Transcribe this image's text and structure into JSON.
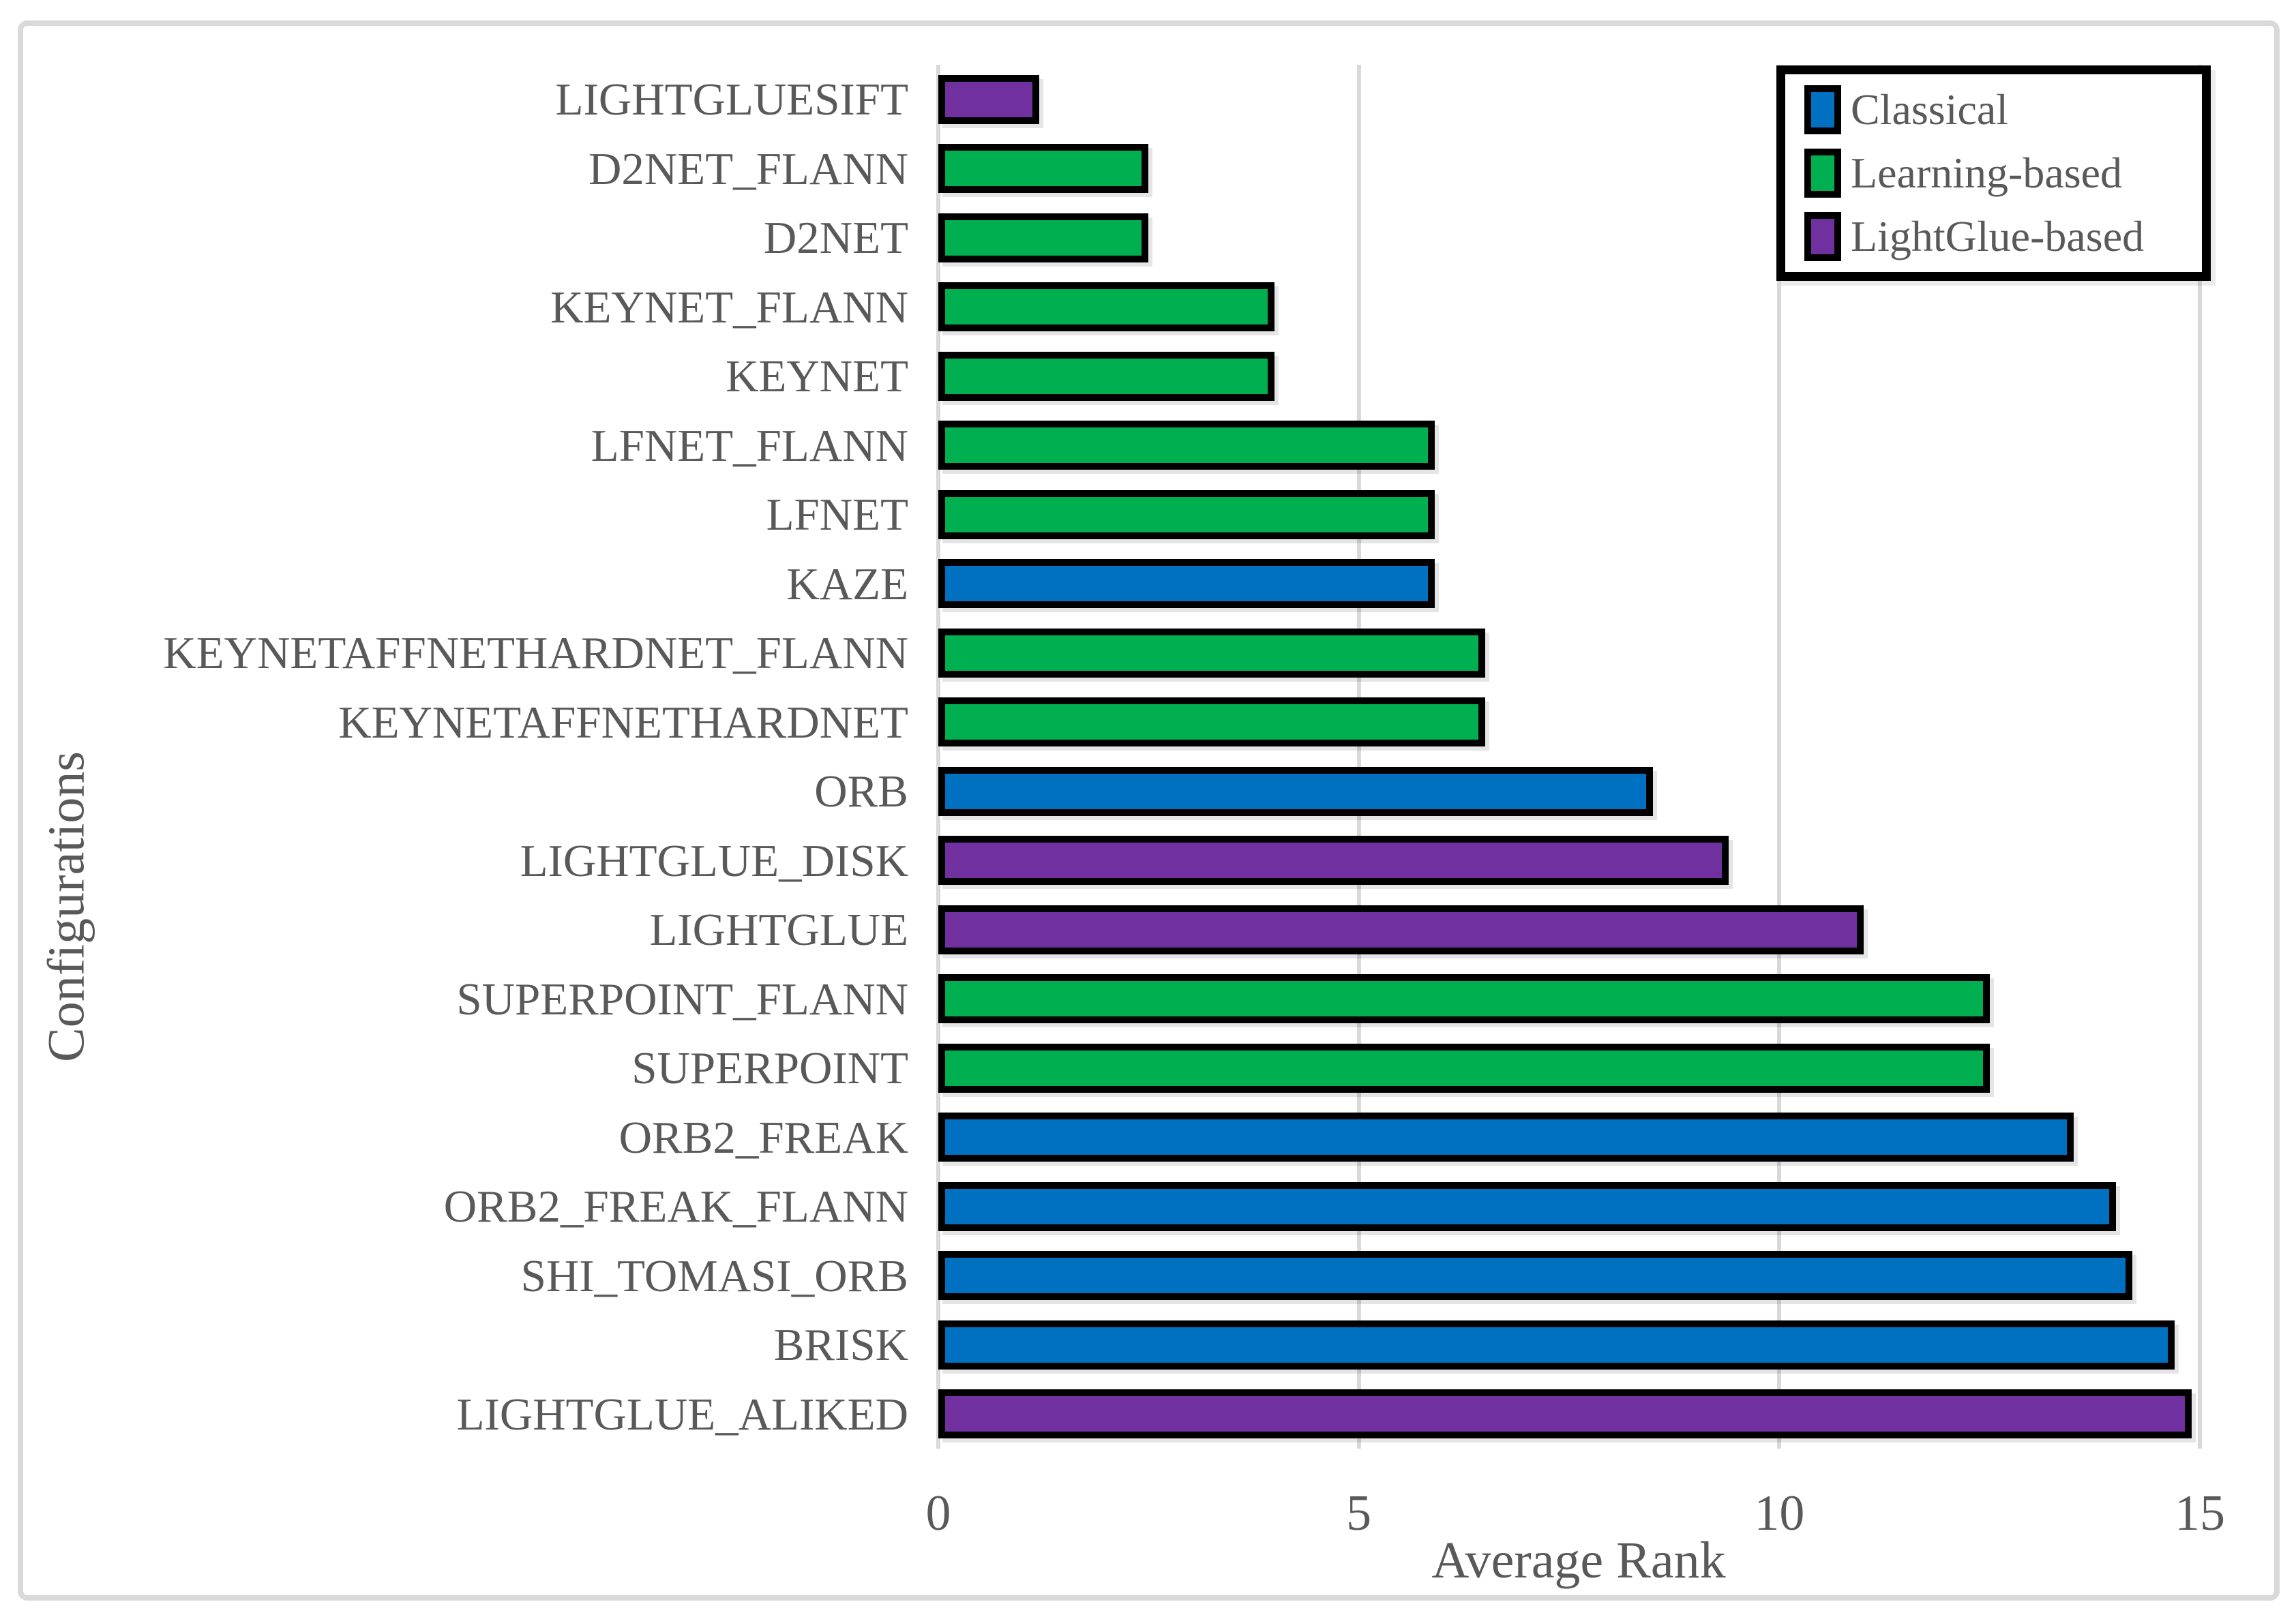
{
  "chart_data": {
    "type": "bar",
    "orientation": "horizontal",
    "xlabel": "Average Rank",
    "ylabel": "Configurations",
    "xlim": [
      0,
      15
    ],
    "x_ticks": [
      "0",
      "5",
      "10",
      "15"
    ],
    "x_tick_values": [
      0,
      5,
      10,
      15
    ],
    "grid": true,
    "legend_position": "top-right",
    "legend": [
      {
        "label": "Classical",
        "color": "#0070C0"
      },
      {
        "label": "Learning-based",
        "color": "#00B050"
      },
      {
        "label": "LightGlue-based",
        "color": "#7030A0"
      }
    ],
    "bars": [
      {
        "label": "LIGHTGLUESIFT",
        "value": 1.2,
        "group": "LightGlue-based"
      },
      {
        "label": "D2NET_FLANN",
        "value": 2.5,
        "group": "Learning-based"
      },
      {
        "label": "D2NET",
        "value": 2.5,
        "group": "Learning-based"
      },
      {
        "label": "KEYNET_FLANN",
        "value": 4.0,
        "group": "Learning-based"
      },
      {
        "label": "KEYNET",
        "value": 4.0,
        "group": "Learning-based"
      },
      {
        "label": "LFNET_FLANN",
        "value": 5.9,
        "group": "Learning-based"
      },
      {
        "label": "LFNET",
        "value": 5.9,
        "group": "Learning-based"
      },
      {
        "label": "KAZE",
        "value": 5.9,
        "group": "Classical"
      },
      {
        "label": "KEYNETAFFNETHARDNET_FLANN",
        "value": 6.5,
        "group": "Learning-based"
      },
      {
        "label": "KEYNETAFFNETHARDNET",
        "value": 6.5,
        "group": "Learning-based"
      },
      {
        "label": "ORB",
        "value": 8.5,
        "group": "Classical"
      },
      {
        "label": "LIGHTGLUE_DISK",
        "value": 9.4,
        "group": "LightGlue-based"
      },
      {
        "label": "LIGHTGLUE",
        "value": 11.0,
        "group": "LightGlue-based"
      },
      {
        "label": "SUPERPOINT_FLANN",
        "value": 12.5,
        "group": "Learning-based"
      },
      {
        "label": "SUPERPOINT",
        "value": 12.5,
        "group": "Learning-based"
      },
      {
        "label": "ORB2_FREAK",
        "value": 13.5,
        "group": "Classical"
      },
      {
        "label": "ORB2_FREAK_FLANN",
        "value": 14.0,
        "group": "Classical"
      },
      {
        "label": "SHI_TOMASI_ORB",
        "value": 14.2,
        "group": "Classical"
      },
      {
        "label": "BRISK",
        "value": 14.7,
        "group": "Classical"
      },
      {
        "label": "LIGHTGLUE_ALIKED",
        "value": 14.9,
        "group": "LightGlue-based"
      }
    ]
  },
  "styles": {
    "classical_color": "#0070C0",
    "learning_color": "#00B050",
    "lightglue_color": "#7030A0",
    "bar_border_color": "#000000",
    "grid_color": "#D9D9D9",
    "figure_border_color": "#D9D9D9",
    "text_color": "#595959",
    "background": "#FFFFFF"
  }
}
